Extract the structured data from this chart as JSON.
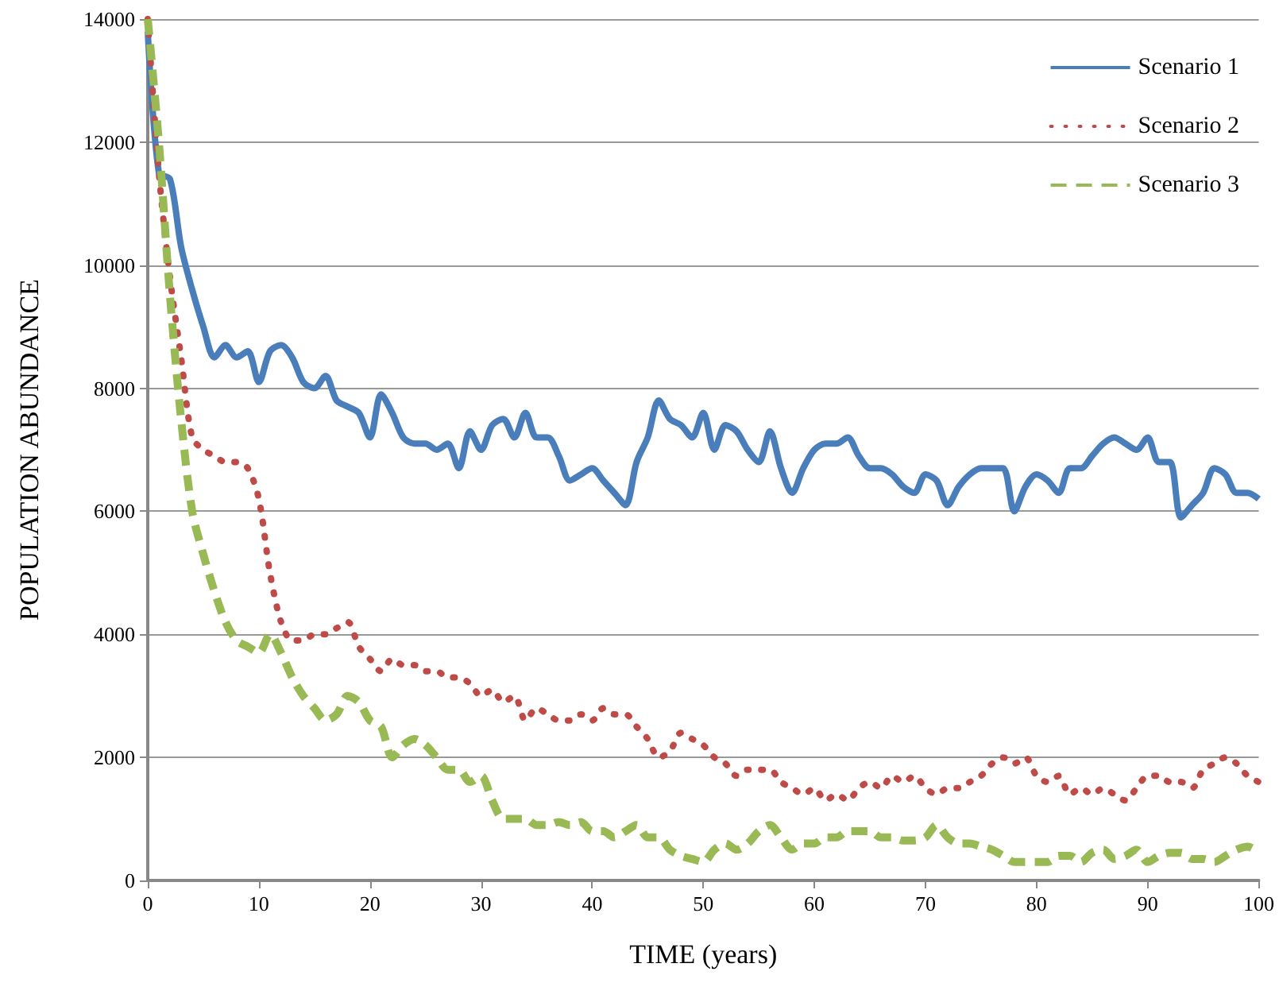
{
  "chart_data": {
    "type": "line",
    "xlabel": "TIME (years)",
    "ylabel": "POPULATION ABUNDANCE",
    "x": [
      0,
      1,
      2,
      3,
      4,
      5,
      6,
      7,
      8,
      9,
      10,
      11,
      12,
      13,
      14,
      15,
      16,
      17,
      18,
      19,
      20,
      21,
      22,
      23,
      24,
      25,
      26,
      27,
      28,
      29,
      30,
      31,
      32,
      33,
      34,
      35,
      36,
      37,
      38,
      39,
      40,
      41,
      42,
      43,
      44,
      45,
      46,
      47,
      48,
      49,
      50,
      51,
      52,
      53,
      54,
      55,
      56,
      57,
      58,
      59,
      60,
      61,
      62,
      63,
      64,
      65,
      66,
      67,
      68,
      69,
      70,
      71,
      72,
      73,
      74,
      75,
      76,
      77,
      78,
      79,
      80,
      81,
      82,
      83,
      84,
      85,
      86,
      87,
      88,
      89,
      90,
      91,
      92,
      93,
      94,
      95,
      96,
      97,
      98,
      99,
      100
    ],
    "xlim": [
      0,
      100
    ],
    "xticks": [
      0,
      10,
      20,
      30,
      40,
      50,
      60,
      70,
      80,
      90,
      100
    ],
    "ylim": [
      0,
      14000
    ],
    "yticks": [
      0,
      2000,
      4000,
      6000,
      8000,
      10000,
      12000,
      14000
    ],
    "grid": "y",
    "legend": "top right",
    "marker": "none",
    "series": [
      {
        "name": "Scenario 1",
        "color": "#4a7ebb",
        "line_style": "solid",
        "values": [
          13800,
          11500,
          11400,
          10300,
          9600,
          9000,
          8500,
          8700,
          8500,
          8600,
          8100,
          8600,
          8700,
          8500,
          8100,
          8000,
          8200,
          7800,
          7700,
          7600,
          7200,
          7900,
          7600,
          7200,
          7100,
          7100,
          7000,
          7100,
          6700,
          7300,
          7000,
          7400,
          7500,
          7200,
          7600,
          7200,
          7200,
          6900,
          6500,
          6600,
          6700,
          6500,
          6300,
          6100,
          6800,
          7200,
          7800,
          7500,
          7400,
          7200,
          7600,
          7000,
          7400,
          7300,
          7000,
          6800,
          7300,
          6700,
          6300,
          6700,
          7000,
          7100,
          7100,
          7200,
          6900,
          6700,
          6700,
          6600,
          6400,
          6300,
          6600,
          6500,
          6100,
          6400,
          6600,
          6700,
          6700,
          6700,
          6000,
          6400,
          6600,
          6500,
          6300,
          6700,
          6700,
          6900,
          7100,
          7200,
          7100,
          7000,
          7200,
          6800,
          6800,
          5900,
          6100,
          6300,
          6700,
          6600,
          6300,
          6300,
          6200
        ]
      },
      {
        "name": "Scenario 2",
        "color": "#be4b48",
        "line_style": "dotted",
        "values": [
          14000,
          11500,
          9800,
          8500,
          7200,
          7000,
          6900,
          6800,
          6800,
          6700,
          6200,
          5000,
          4200,
          3900,
          3900,
          4000,
          4000,
          4100,
          4200,
          3800,
          3600,
          3400,
          3600,
          3500,
          3500,
          3400,
          3400,
          3300,
          3300,
          3200,
          3000,
          3100,
          2900,
          3000,
          2600,
          2800,
          2700,
          2600,
          2600,
          2700,
          2600,
          2800,
          2700,
          2700,
          2500,
          2300,
          2000,
          2100,
          2400,
          2300,
          2200,
          2000,
          1900,
          1700,
          1800,
          1800,
          1800,
          1600,
          1500,
          1400,
          1500,
          1300,
          1400,
          1300,
          1500,
          1600,
          1500,
          1700,
          1600,
          1700,
          1500,
          1400,
          1500,
          1500,
          1600,
          1700,
          1900,
          2000,
          1900,
          2000,
          1700,
          1600,
          1700,
          1400,
          1500,
          1400,
          1500,
          1400,
          1300,
          1500,
          1700,
          1700,
          1600,
          1600,
          1500,
          1800,
          1900,
          2000,
          1900,
          1700,
          1600
        ]
      },
      {
        "name": "Scenario 3",
        "color": "#98b954",
        "line_style": "dashed",
        "values": [
          14000,
          12000,
          9500,
          7500,
          6000,
          5300,
          4700,
          4200,
          3900,
          3800,
          3700,
          4000,
          3700,
          3300,
          3000,
          2800,
          2600,
          2700,
          3000,
          2900,
          2600,
          2500,
          2000,
          2200,
          2300,
          2200,
          2000,
          1800,
          1800,
          1600,
          1700,
          1300,
          1000,
          1000,
          1000,
          900,
          900,
          950,
          900,
          950,
          800,
          800,
          700,
          800,
          900,
          700,
          700,
          500,
          400,
          350,
          300,
          500,
          600,
          500,
          600,
          800,
          900,
          700,
          500,
          600,
          600,
          700,
          700,
          800,
          800,
          800,
          700,
          700,
          650,
          650,
          700,
          900,
          700,
          600,
          600,
          550,
          500,
          400,
          300,
          300,
          300,
          300,
          400,
          400,
          300,
          450,
          500,
          350,
          400,
          500,
          300,
          400,
          450,
          450,
          350,
          350,
          300,
          400,
          500,
          550,
          450
        ]
      }
    ]
  }
}
